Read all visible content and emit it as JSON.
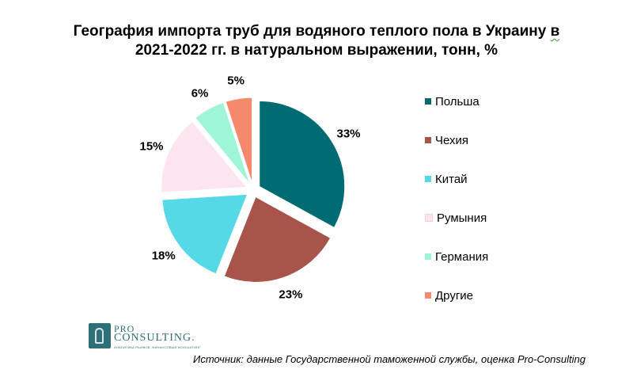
{
  "chart_data": {
    "type": "pie",
    "title_line1": "География импорта труб для водяного теплого пола в Украину",
    "title_squiggle": "в",
    "title_line2": "2021-2022 гг. в натуральном выражении, тонн, %",
    "categories": [
      "Польша",
      "Чехия",
      "Китай",
      "Румыния",
      "Германия",
      "Другие"
    ],
    "values": [
      33,
      23,
      18,
      15,
      6,
      5
    ],
    "labels": [
      "33%",
      "23%",
      "18%",
      "15%",
      "6%",
      "5%"
    ],
    "colors": [
      "#006b72",
      "#a9544b",
      "#56d9e6",
      "#fce4f0",
      "#9ff5d8",
      "#f4896b"
    ],
    "legend_position": "right",
    "exploded": true
  },
  "logo": {
    "top": "PRO",
    "main": "CONSULTING.",
    "sub": "АНАЛИТИКА РЫНКОВ. ФИНАНСОВЫЙ КОНСАЛТИНГ"
  },
  "source": "Источник: данные Государственной таможенной службы, оценка Pro-Consulting"
}
